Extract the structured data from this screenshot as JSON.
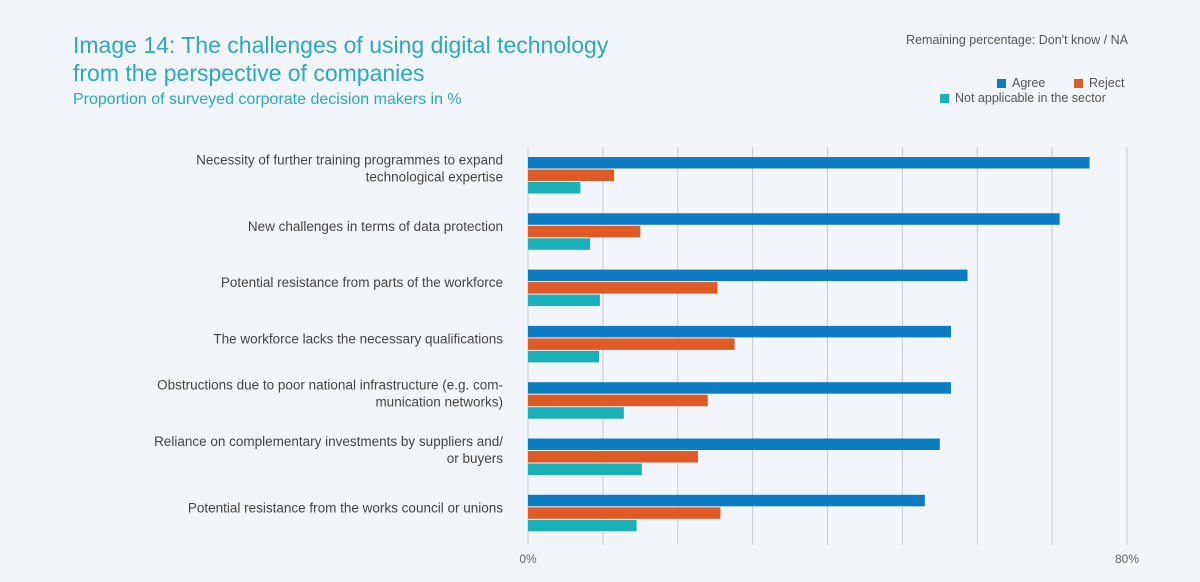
{
  "title": "Image 14: The challenges of using digital tech­nology from the perspective of companies",
  "subtitle": "Proportion of surveyed corporate decision makers in %",
  "note": "Remaining percentage: Don't know / NA",
  "legend": {
    "agree": "Agree",
    "reject": "Reject",
    "na": "Not applicable in the sector"
  },
  "colors": {
    "agree": "#0c7dc1",
    "reject": "#e05a25",
    "na": "#19b0b8",
    "title": "#2aa7c9",
    "grid": "#c8cdd2"
  },
  "chart_data": {
    "type": "bar",
    "orientation": "horizontal",
    "title": "Image 14: The challenges of using digital tech­nology from the perspective of companies",
    "subtitle": "Proportion of surveyed corporate decision makers in %",
    "categories": [
      [
        "Necessity of further training programmes to expand",
        "technological expertise"
      ],
      [
        "New challenges in terms of data protection"
      ],
      [
        "Potential resistance from parts of the workforce"
      ],
      [
        "The workforce lacks the necessary qualifications"
      ],
      [
        "Obstructions due to poor national infrastructure (e.g. com-",
        "munication networks)"
      ],
      [
        "Reliance on complementary investments by suppliers and/",
        "or buyers"
      ],
      [
        "Potential resistance from the works council or unions"
      ]
    ],
    "series": [
      {
        "name": "Agree",
        "values": [
          75,
          71,
          58.7,
          56.5,
          56.5,
          55,
          53
        ]
      },
      {
        "name": "Reject",
        "values": [
          11.5,
          15,
          25.3,
          27.6,
          24,
          22.7,
          25.7
        ]
      },
      {
        "name": "Not applicable in the sector",
        "values": [
          7,
          8.3,
          9.6,
          9.5,
          12.8,
          15.2,
          14.5
        ]
      }
    ],
    "xlim": [
      0,
      80
    ],
    "xtick_labels": [
      "0%",
      "80%"
    ],
    "grid": true,
    "grid_step": 10,
    "legend_position": "top-right"
  }
}
